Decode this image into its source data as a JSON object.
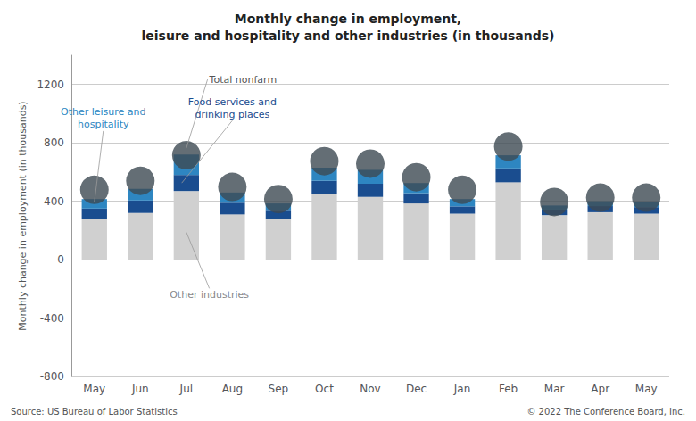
{
  "chart_data": {
    "type": "bar",
    "title": "Monthly change in employment,\nleisure and hospitality and other industries (in thousands)",
    "ylabel": "Monthly change in employment (in thousands)",
    "categories": [
      "May",
      "Jun",
      "Jul",
      "Aug",
      "Sep",
      "Oct",
      "Nov",
      "Dec",
      "Jan",
      "Feb",
      "Mar",
      "Apr",
      "May"
    ],
    "stacked": true,
    "series": [
      {
        "type": "bar",
        "color": "#d0d0d0",
        "values": [
          280,
          320,
          470,
          310,
          280,
          450,
          430,
          385,
          315,
          530,
          305,
          325,
          315
        ]
      },
      {
        "type": "bar",
        "color": "#1a4d8f",
        "values": [
          70,
          85,
          110,
          80,
          55,
          90,
          90,
          70,
          50,
          95,
          38,
          42,
          45
        ]
      },
      {
        "type": "bar",
        "color": "#2e86c1",
        "values": [
          65,
          80,
          140,
          70,
          50,
          90,
          95,
          70,
          50,
          90,
          28,
          33,
          38
        ]
      },
      {
        "type": "scatter",
        "color": "#3d4a52",
        "values": [
          478,
          540,
          715,
          498,
          415,
          675,
          658,
          565,
          478,
          775,
          395,
          425,
          425
        ]
      }
    ],
    "annotations": [
      "Other industries",
      "Food services and\ndrinking places",
      "Other leisure and\nhospitality",
      "Total nonfarm"
    ],
    "source": "Source: US Bureau of Labor Statistics",
    "copyright": "© 2022 The Conference Board, Inc.",
    "ylim": [
      -800,
      1400
    ],
    "yticks": [
      -800,
      -400,
      0,
      400,
      800,
      1200
    ],
    "grid": true
  }
}
